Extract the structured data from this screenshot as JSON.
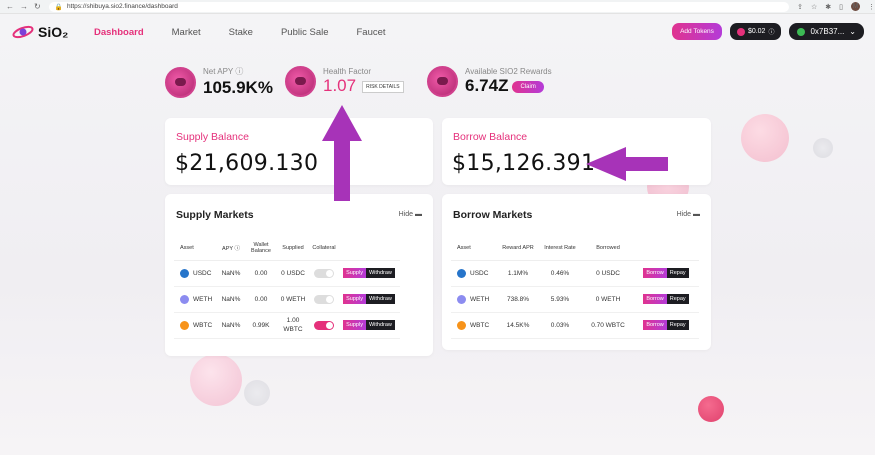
{
  "browser": {
    "url": "https://shibuya.sio2.finance/dashboard",
    "profile": "M"
  },
  "logo": "SiO₂",
  "menu": [
    "Dashboard",
    "Market",
    "Stake",
    "Public Sale",
    "Faucet"
  ],
  "header_right": {
    "add_tokens": "Add Tokens",
    "price": "$0.02",
    "wallet": "0x7B37..."
  },
  "stats": {
    "net_apy": {
      "label": "Net APY",
      "value": "105.9K%"
    },
    "health": {
      "label": "Health Factor",
      "value": "1.07",
      "pill": "RISK DETAILS"
    },
    "rewards": {
      "label": "Available SIO2 Rewards",
      "value": "6.74Z",
      "claim": "Claim"
    }
  },
  "supply_balance": {
    "label": "Supply Balance",
    "value": "$21,609.130"
  },
  "borrow_balance": {
    "label": "Borrow Balance",
    "value": "$15,126.391"
  },
  "supply_markets": {
    "title": "Supply Markets",
    "hide": "Hide",
    "headers": [
      "Asset",
      "APY",
      "Wallet Balance",
      "Supplied",
      "Collateral"
    ],
    "rows": [
      {
        "asset": "USDC",
        "apy": "NaN%",
        "wallet": "0.00",
        "supplied": "0 USDC",
        "collateral": false
      },
      {
        "asset": "WETH",
        "apy": "NaN%",
        "wallet": "0.00",
        "supplied": "0 WETH",
        "collateral": false
      },
      {
        "asset": "WBTC",
        "apy": "NaN%",
        "wallet": "0.99K",
        "supplied": "1.00 WBTC",
        "collateral": true
      }
    ],
    "supply_btn": "Supply",
    "withdraw_btn": "Withdraw"
  },
  "borrow_markets": {
    "title": "Borrow Markets",
    "hide": "Hide",
    "headers": [
      "Asset",
      "Reward APR",
      "Interest Rate",
      "Borrowed"
    ],
    "rows": [
      {
        "asset": "USDC",
        "reward": "1.1M%",
        "rate": "0.46%",
        "borrowed": "0 USDC"
      },
      {
        "asset": "WETH",
        "reward": "738.8%",
        "rate": "5.93%",
        "borrowed": "0 WETH"
      },
      {
        "asset": "WBTC",
        "reward": "14.5K%",
        "rate": "0.03%",
        "borrowed": "0.70 WBTC"
      }
    ],
    "borrow_btn": "Borrow",
    "repay_btn": "Repay"
  },
  "colors": {
    "accent": "#e5317b",
    "arrow": "#a733b8",
    "usdc": "#2775ca",
    "weth": "#8c8cf0",
    "wbtc": "#f7931a"
  }
}
